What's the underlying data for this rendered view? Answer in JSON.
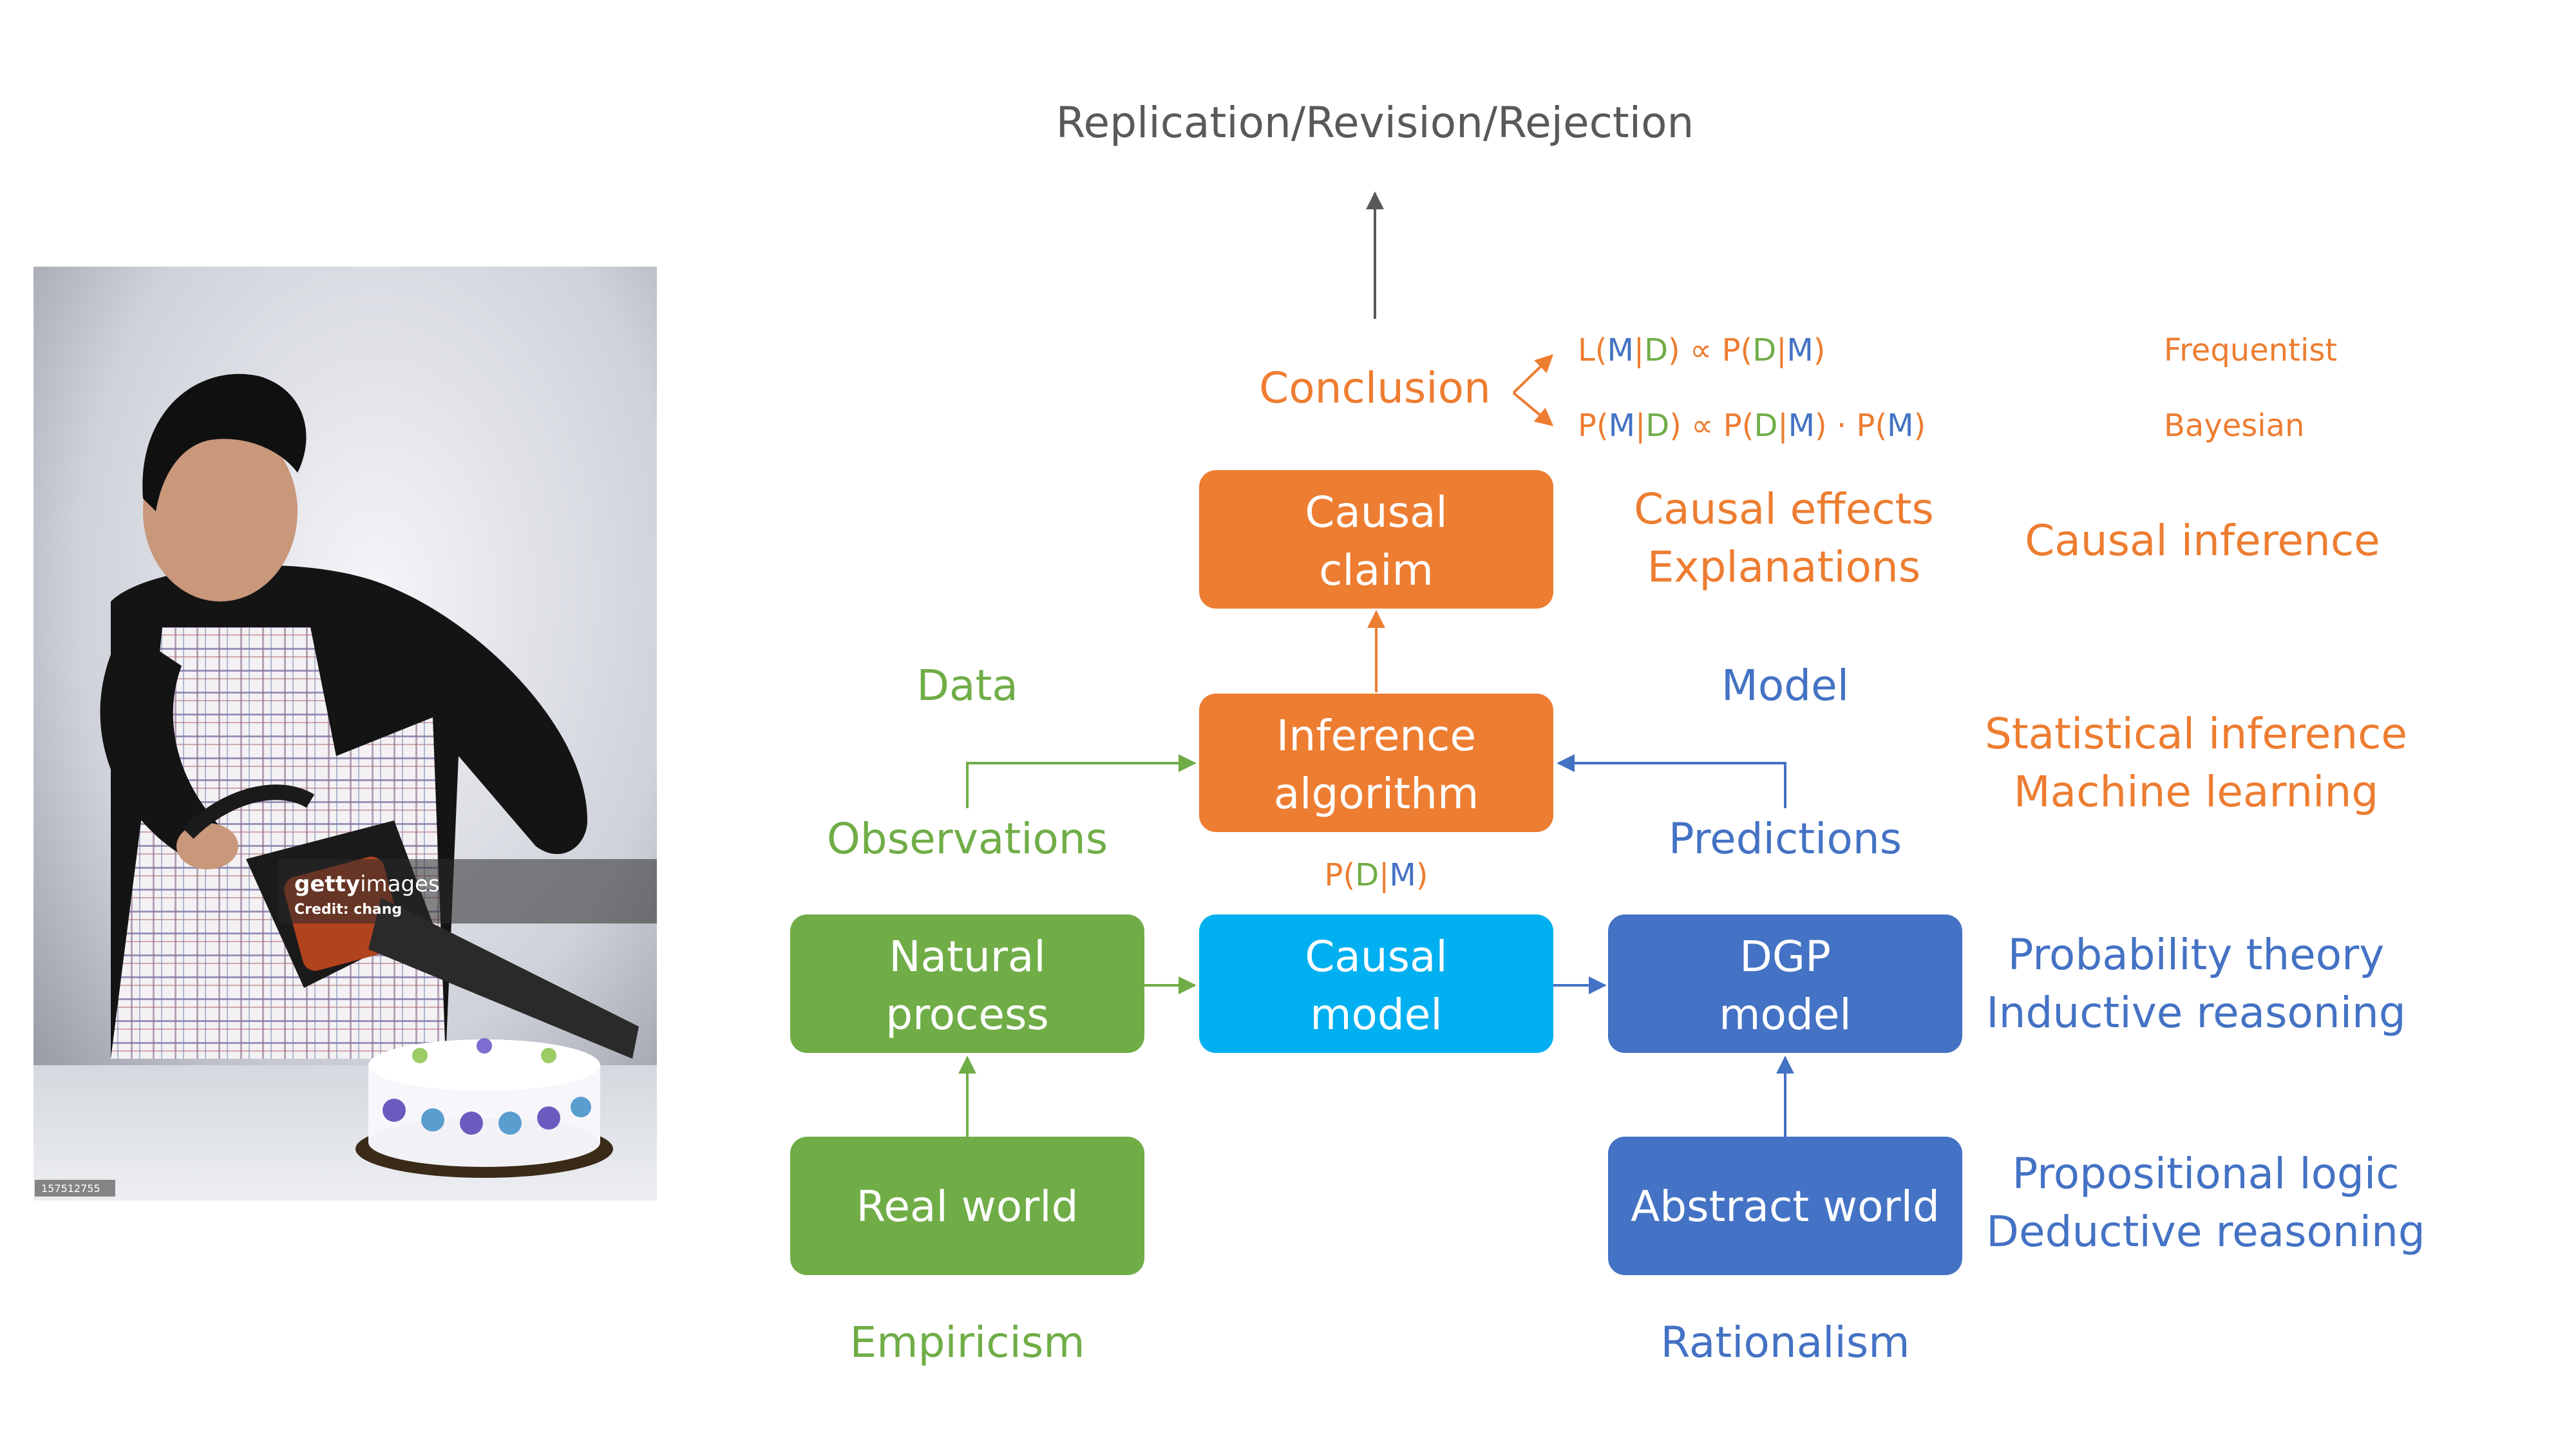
{
  "photo": {
    "watermark_brand_1": "getty",
    "watermark_brand_2": "images",
    "watermark_credit": "Credit: chang",
    "image_id": "157512755"
  },
  "top": {
    "title": "Replication/Revision/Rejection",
    "conclusion": "Conclusion",
    "frequentist_label": "Frequentist",
    "bayesian_label": "Bayesian"
  },
  "formulas": {
    "likelihood": {
      "p1": "L(",
      "m1": "M",
      "bar1": "|",
      "d1": "D",
      "p2": ") ∝ P(",
      "d2": "D",
      "bar2": "|",
      "m2": "M",
      "p3": ")"
    },
    "posterior": {
      "p1": "P(",
      "m1": "M",
      "bar1": "|",
      "d1": "D",
      "p2": ") ∝ P(",
      "d2": "D",
      "bar2": "|",
      "m2": "M",
      "p3": ") · P(",
      "m3": "M",
      "p4": ")"
    },
    "pdm": {
      "p1": "P(",
      "d": "D",
      "bar": "|",
      "m": "M",
      "p2": ")"
    }
  },
  "boxes": {
    "causal_claim": [
      "Causal",
      "claim"
    ],
    "inference_algorithm": [
      "Inference",
      "algorithm"
    ],
    "natural_process": [
      "Natural",
      "process"
    ],
    "causal_model": [
      "Causal",
      "model"
    ],
    "dgp_model": [
      "DGP",
      "model"
    ],
    "real_world": "Real world",
    "abstract_world": "Abstract world"
  },
  "labels": {
    "data": "Data",
    "observations": "Observations",
    "model": "Model",
    "predictions": "Predictions",
    "causal_effects": "Causal effects",
    "explanations": "Explanations",
    "empiricism": "Empiricism",
    "rationalism": "Rationalism"
  },
  "right_column": {
    "causal_inference": "Causal inference",
    "statistical_inference": "Statistical inference",
    "machine_learning": "Machine learning",
    "probability_theory": "Probability theory",
    "inductive_reasoning": "Inductive reasoning",
    "propositional_logic": "Propositional logic",
    "deductive_reasoning": "Deductive reasoning"
  },
  "colors": {
    "orange": "#ED7D31",
    "green": "#70AD47",
    "cyan": "#00B0F0",
    "blue": "#4472C4",
    "gray": "#595959"
  }
}
